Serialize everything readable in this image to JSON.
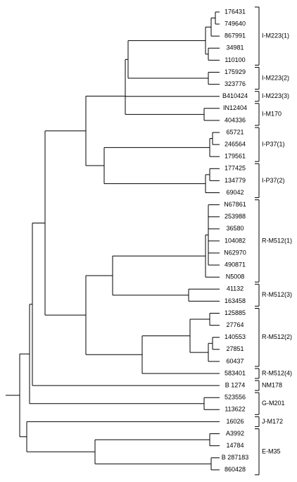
{
  "leaves": [
    "176431",
    "749640",
    "867991",
    "34981",
    "110100",
    "175929",
    "323776",
    "B410424",
    "IN12404",
    "404336",
    "65721",
    "246564",
    "179561",
    "177425",
    "134779",
    "69042",
    "N67861",
    "253988",
    "36580",
    "104082",
    "N62970",
    "490871",
    "N5008",
    "41132",
    "163458",
    "125885",
    "27764",
    "140553",
    "27851",
    "60437",
    "583401",
    "B 1274",
    "523556",
    "113622",
    "16026",
    "A3992",
    "14784",
    "B 287183",
    "860428"
  ],
  "groups": [
    "I-M223(1)",
    "I-M223(2)",
    "I-M223(3)",
    "I-M170",
    "I-P37(1)",
    "I-P37(2)",
    "R-M512(1)",
    "R-M512(3)",
    "R-M512(2)",
    "R-M512(4)",
    "NM178",
    "G-M201",
    "J-M172",
    "E-M35"
  ]
}
